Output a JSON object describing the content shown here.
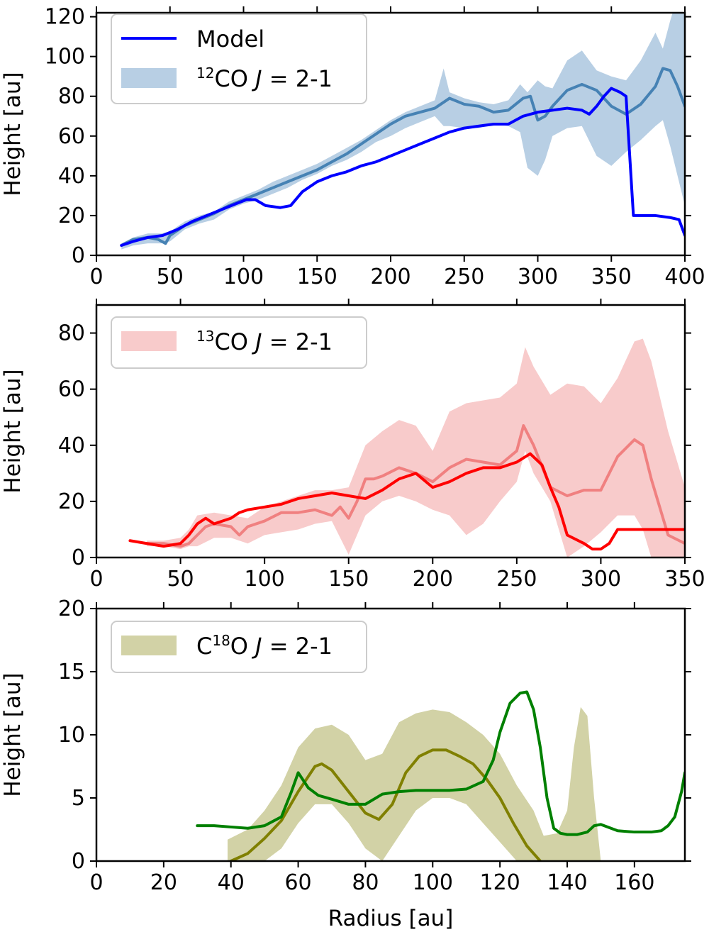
{
  "chart_data": [
    {
      "type": "line",
      "xlabel": "",
      "ylabel": "Height [au]",
      "xlim": [
        0,
        400
      ],
      "ylim": [
        0,
        122
      ],
      "xticks": [
        "0",
        "50",
        "100",
        "150",
        "200",
        "250",
        "300",
        "350",
        "400"
      ],
      "yticks": [
        "0",
        "20",
        "40",
        "60",
        "80",
        "100",
        "120"
      ],
      "legend_position": "upper-left",
      "legend": [
        {
          "kind": "line",
          "color": "#0000ff",
          "text": "Model"
        },
        {
          "kind": "band",
          "color": "#b8cfe4",
          "pre": "",
          "sup": "12",
          "post": "CO ",
          "italic": "J",
          "tail": " = 2-1"
        }
      ],
      "series": [
        {
          "role": "band",
          "color": "#b8cfe4",
          "x": [
            17,
            25,
            35,
            44,
            50,
            60,
            70,
            80,
            90,
            100,
            110,
            120,
            130,
            140,
            150,
            160,
            170,
            180,
            190,
            200,
            210,
            220,
            230,
            236,
            240,
            250,
            260,
            270,
            280,
            288,
            293,
            300,
            305,
            310,
            320,
            330,
            340,
            350,
            360,
            370,
            380,
            385,
            390,
            395,
            400
          ],
          "upper": [
            6,
            9,
            11,
            11,
            12,
            17,
            20,
            22,
            27,
            30,
            33,
            37,
            40,
            43,
            46,
            50,
            54,
            58,
            63,
            68,
            72,
            75,
            78,
            94,
            82,
            79,
            77,
            76,
            78,
            86,
            82,
            88,
            85,
            84,
            98,
            103,
            93,
            90,
            88,
            98,
            112,
            104,
            118,
            130,
            130
          ],
          "lower": [
            3,
            5,
            6,
            6,
            7,
            13,
            16,
            18,
            23,
            26,
            28,
            31,
            34,
            38,
            41,
            45,
            48,
            52,
            57,
            60,
            64,
            67,
            70,
            65,
            65,
            64,
            64,
            66,
            65,
            62,
            44,
            40,
            48,
            60,
            64,
            65,
            50,
            45,
            52,
            58,
            65,
            68,
            55,
            40,
            25
          ]
        },
        {
          "role": "line",
          "name": "observed 12CO",
          "color": "#4682b4",
          "x": [
            17,
            25,
            35,
            42,
            47,
            50,
            60,
            70,
            80,
            90,
            100,
            110,
            120,
            130,
            140,
            150,
            160,
            170,
            180,
            190,
            200,
            210,
            220,
            230,
            240,
            250,
            260,
            270,
            280,
            290,
            295,
            300,
            305,
            310,
            320,
            330,
            340,
            350,
            360,
            370,
            380,
            385,
            390,
            395,
            400
          ],
          "y": [
            5,
            8,
            9,
            8,
            6,
            10,
            15,
            18,
            21,
            25,
            28,
            31,
            34,
            37,
            40,
            43,
            47,
            51,
            56,
            61,
            66,
            70,
            72,
            74,
            79,
            76,
            75,
            72,
            73,
            79,
            80,
            68,
            70,
            75,
            83,
            86,
            83,
            75,
            71,
            76,
            85,
            94,
            93,
            85,
            75
          ]
        },
        {
          "role": "line",
          "name": "Model",
          "color": "#0000ff",
          "x": [
            17,
            25,
            35,
            45,
            55,
            65,
            75,
            85,
            95,
            102,
            108,
            115,
            125,
            132,
            140,
            150,
            160,
            170,
            180,
            190,
            200,
            210,
            220,
            230,
            240,
            250,
            260,
            270,
            280,
            290,
            300,
            310,
            320,
            330,
            335,
            340,
            345,
            350,
            356,
            360,
            365,
            368,
            380,
            390,
            396,
            400
          ],
          "y": [
            5,
            7,
            9,
            10,
            13,
            17,
            20,
            23,
            26,
            28,
            28,
            25,
            24,
            25,
            32,
            37,
            40,
            42,
            45,
            47,
            50,
            53,
            56,
            59,
            62,
            64,
            65,
            66,
            66,
            70,
            72,
            73,
            74,
            73,
            71,
            75,
            80,
            84,
            82,
            80,
            20,
            20,
            20,
            19,
            18,
            10
          ]
        }
      ]
    },
    {
      "type": "line",
      "xlabel": "",
      "ylabel": "Height [au]",
      "xlim": [
        0,
        350
      ],
      "ylim": [
        0,
        90
      ],
      "xticks": [
        "0",
        "50",
        "100",
        "150",
        "200",
        "250",
        "300",
        "350"
      ],
      "yticks": [
        "0",
        "20",
        "40",
        "60",
        "80"
      ],
      "legend_position": "upper-left",
      "legend": [
        {
          "kind": "band",
          "color": "#f8cbcb",
          "pre": "",
          "sup": "13",
          "post": "CO ",
          "italic": "J",
          "tail": " = 2-1"
        }
      ],
      "series": [
        {
          "role": "band",
          "color": "#f8cbcb",
          "x": [
            30,
            40,
            50,
            55,
            60,
            70,
            80,
            90,
            100,
            110,
            120,
            130,
            140,
            150,
            160,
            170,
            180,
            190,
            200,
            210,
            220,
            230,
            240,
            250,
            255,
            260,
            270,
            280,
            290,
            300,
            310,
            320,
            325,
            330,
            340,
            350
          ],
          "upper": [
            6,
            6,
            7,
            10,
            15,
            16,
            15,
            14,
            18,
            20,
            22,
            24,
            24,
            25,
            40,
            45,
            49,
            47,
            38,
            52,
            55,
            56,
            57,
            62,
            75,
            68,
            58,
            62,
            61,
            55,
            64,
            77,
            78,
            70,
            45,
            25
          ],
          "lower": [
            4,
            4,
            3,
            4,
            4,
            7,
            7,
            5,
            8,
            9,
            10,
            12,
            13,
            1,
            15,
            20,
            22,
            20,
            17,
            15,
            8,
            12,
            20,
            27,
            38,
            30,
            20,
            0,
            4,
            9,
            15,
            15,
            10,
            0,
            0,
            0
          ]
        },
        {
          "role": "line",
          "name": "observed 13CO",
          "color": "#f08080",
          "x": [
            30,
            40,
            50,
            55,
            60,
            65,
            70,
            80,
            85,
            90,
            100,
            110,
            120,
            130,
            140,
            145,
            150,
            155,
            160,
            165,
            170,
            180,
            190,
            200,
            210,
            220,
            230,
            240,
            250,
            254,
            260,
            270,
            280,
            290,
            300,
            310,
            320,
            325,
            330,
            340,
            350
          ],
          "y": [
            5,
            5,
            4,
            5,
            8,
            11,
            12,
            11,
            8,
            11,
            13,
            16,
            16,
            17,
            15,
            18,
            14,
            20,
            28,
            28,
            29,
            32,
            30,
            27,
            32,
            35,
            34,
            33,
            38,
            47,
            40,
            25,
            22,
            24,
            24,
            36,
            42,
            40,
            28,
            8,
            5
          ]
        },
        {
          "role": "line",
          "name": "Model",
          "color": "#ff0000",
          "x": [
            20,
            30,
            40,
            50,
            55,
            60,
            65,
            70,
            80,
            85,
            90,
            100,
            110,
            120,
            130,
            140,
            150,
            160,
            170,
            180,
            190,
            200,
            210,
            220,
            230,
            240,
            250,
            258,
            265,
            270,
            275,
            280,
            290,
            295,
            300,
            305,
            310,
            320,
            330,
            340,
            350
          ],
          "y": [
            6,
            5,
            4,
            5,
            8,
            12,
            14,
            12,
            14,
            16,
            17,
            18,
            19,
            21,
            22,
            23,
            22,
            21,
            24,
            28,
            30,
            25,
            27,
            30,
            32,
            32,
            34,
            37,
            33,
            25,
            18,
            8,
            5,
            3,
            3,
            5,
            10,
            10,
            10,
            10,
            10
          ]
        }
      ]
    },
    {
      "type": "line",
      "xlabel": "Radius [au]",
      "ylabel": "Height [au]",
      "xlim": [
        0,
        175
      ],
      "ylim": [
        0,
        20
      ],
      "xticks": [
        "0",
        "20",
        "40",
        "60",
        "80",
        "100",
        "120",
        "140",
        "160"
      ],
      "yticks": [
        "0",
        "5",
        "10",
        "15",
        "20"
      ],
      "legend_position": "upper-left",
      "legend": [
        {
          "kind": "band",
          "color": "#d2d2a6",
          "pre": "C",
          "sup": "18",
          "post": "O ",
          "italic": "J",
          "tail": " = 2-1"
        }
      ],
      "series": [
        {
          "role": "band",
          "color": "#d2d2a6",
          "x": [
            39,
            45,
            50,
            55,
            60,
            65,
            70,
            75,
            80,
            85,
            90,
            95,
            100,
            105,
            110,
            115,
            120,
            125,
            130,
            133,
            137,
            140,
            142,
            144,
            146,
            148,
            150
          ],
          "upper": [
            1.7,
            2.5,
            4,
            6,
            9,
            10.5,
            10.8,
            10,
            8,
            8.5,
            11,
            11.7,
            12,
            11.8,
            11,
            10,
            8.5,
            6,
            4,
            2,
            2.2,
            4,
            9,
            12.2,
            11.5,
            5,
            0
          ],
          "lower": [
            0,
            0,
            0,
            1,
            3,
            4.5,
            4.5,
            3,
            1,
            0,
            2,
            4,
            5,
            5,
            4.5,
            3,
            1.5,
            0,
            0,
            0,
            0,
            0,
            0,
            0,
            0,
            0,
            0
          ]
        },
        {
          "role": "line",
          "name": "observed C18O",
          "color": "#808000",
          "x": [
            40,
            45,
            50,
            55,
            60,
            65,
            67,
            70,
            75,
            80,
            84,
            88,
            92,
            96,
            100,
            104,
            108,
            112,
            116,
            120,
            124,
            128,
            132
          ],
          "y": [
            0,
            0.6,
            1.8,
            3.2,
            5.5,
            7.5,
            7.7,
            7.2,
            5.5,
            3.8,
            3.3,
            4.5,
            7,
            8.3,
            8.8,
            8.8,
            8.3,
            7.7,
            6.5,
            5,
            3,
            1.2,
            0
          ]
        },
        {
          "role": "line",
          "name": "Model",
          "color": "#008000",
          "x": [
            30,
            35,
            40,
            45,
            50,
            55,
            58,
            60,
            63,
            66,
            70,
            75,
            80,
            85,
            90,
            95,
            100,
            105,
            110,
            115,
            118,
            120,
            123,
            126,
            128,
            130,
            132,
            134,
            136,
            138,
            140,
            143,
            146,
            148,
            150,
            155,
            160,
            165,
            168,
            170,
            172,
            174,
            175
          ],
          "y": [
            2.8,
            2.8,
            2.7,
            2.6,
            2.8,
            3.5,
            5.5,
            7,
            5.8,
            5.2,
            4.9,
            4.5,
            4.5,
            5.3,
            5.5,
            5.6,
            5.6,
            5.6,
            5.7,
            6.3,
            8,
            10.2,
            12.5,
            13.3,
            13.4,
            12,
            9,
            5,
            2.6,
            2.2,
            2.1,
            2.1,
            2.3,
            2.8,
            2.9,
            2.4,
            2.3,
            2.3,
            2.4,
            2.8,
            3.5,
            5.5,
            7
          ]
        }
      ]
    }
  ]
}
